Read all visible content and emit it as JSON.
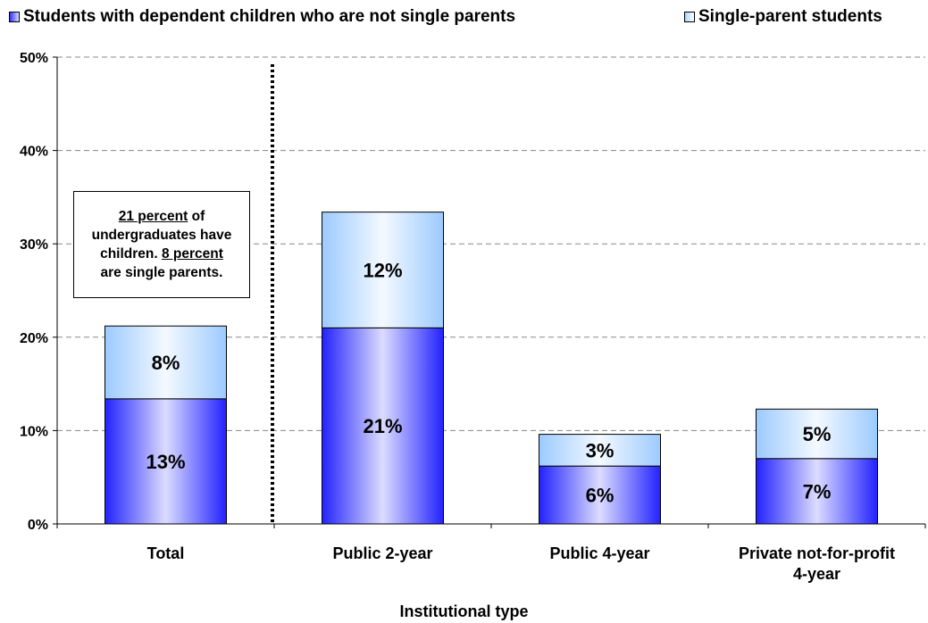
{
  "chart_data": {
    "type": "bar",
    "stacked": true,
    "categories": [
      "Total",
      "Public 2-year",
      "Public 4-year",
      "Private not-for-profit\n4-year"
    ],
    "series": [
      {
        "name": "Students with dependent children who are not single parents",
        "values": [
          13.4,
          21.0,
          6.2,
          7.0
        ],
        "labels": [
          "13%",
          "21%",
          "6%",
          "7%"
        ],
        "color": "#3333ff"
      },
      {
        "name": "Single-parent students",
        "values": [
          7.8,
          12.4,
          3.4,
          5.3
        ],
        "labels": [
          "8%",
          "12%",
          "3%",
          "5%"
        ],
        "color": "#aad4ff"
      }
    ],
    "ylim": [
      0,
      50
    ],
    "yticks": [
      "0%",
      "10%",
      "20%",
      "30%",
      "40%",
      "50%"
    ],
    "xlabel": "Institutional type",
    "ylabel": "",
    "grid": true,
    "legend_position": "top",
    "annotation": {
      "line1_underlined": "21 percent",
      "line1_rest": " of",
      "line2": "undergraduates have",
      "line3_start": "children.  ",
      "line3_underlined": "8 percent",
      "line4": "are single parents."
    }
  }
}
